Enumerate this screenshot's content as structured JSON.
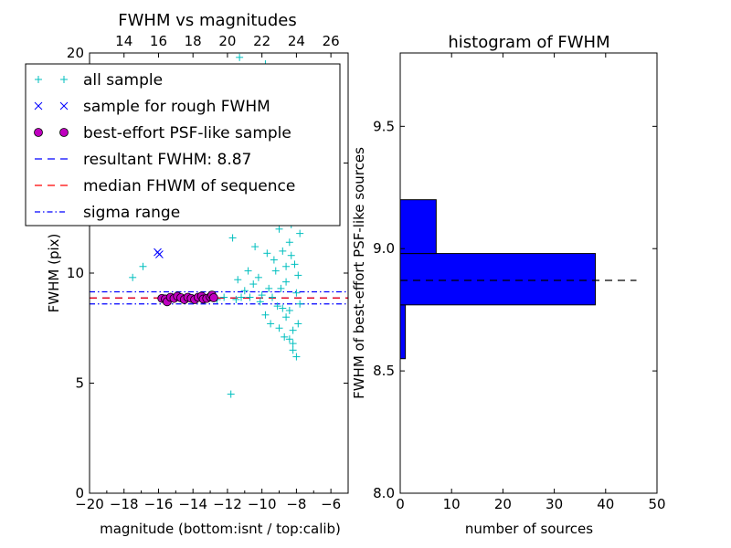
{
  "chart_data": [
    {
      "type": "scatter",
      "title": "FWHM vs magnitudes",
      "xlabel": "magnitude (bottom:isnt / top:calib)",
      "ylabel": "FWHM (pix)",
      "xlim": [
        -20,
        -5
      ],
      "ylim": [
        0,
        20
      ],
      "xticks": [
        -20,
        -18,
        -16,
        -14,
        -12,
        -10,
        -8,
        -6
      ],
      "xtick_labels": [
        "−20",
        "−18",
        "−16",
        "−14",
        "−12",
        "−10",
        "−8",
        "−6"
      ],
      "yticks": [
        0,
        5,
        10,
        15,
        20
      ],
      "ytick_labels": [
        "0",
        "5",
        "10",
        "15",
        "20"
      ],
      "top_axis": {
        "label": "calib",
        "xlim": [
          12,
          27
        ],
        "ticks": [
          14,
          16,
          18,
          20,
          22,
          24,
          26
        ],
        "tick_labels": [
          "14",
          "16",
          "18",
          "20",
          "22",
          "24",
          "26"
        ]
      },
      "legend": {
        "placement": "upper-left",
        "entries": [
          {
            "label": "all sample",
            "marker": "+",
            "color": "#00bfbf"
          },
          {
            "label": "sample for rough FWHM",
            "marker": "x",
            "color": "#0000ff"
          },
          {
            "label": "best-effort PSF-like sample",
            "marker": "o",
            "color": "#bf00bf"
          },
          {
            "label": "resultant FWHM: 8.87",
            "linestyle": "dashed",
            "color": "#0000ff"
          },
          {
            "label": "median FHWM of sequence",
            "linestyle": "dashed",
            "color": "#ff0000"
          },
          {
            "label": "sigma range",
            "linestyle": "dashdot",
            "color": "#0000ff"
          }
        ]
      },
      "series": [
        {
          "name": "all sample",
          "marker": "+",
          "color": "#00bfbf",
          "points": [
            [
              -17.5,
              9.8
            ],
            [
              -16.9,
              10.3
            ],
            [
              -11.8,
              4.5
            ],
            [
              -11.3,
              19.8
            ],
            [
              -11.1,
              12.4
            ],
            [
              -10.6,
              17.5
            ],
            [
              -10.4,
              11.2
            ],
            [
              -9.8,
              19.5
            ],
            [
              -9.6,
              15.3
            ],
            [
              -9.3,
              13.6
            ],
            [
              -11.7,
              11.6
            ],
            [
              -12.0,
              12.8
            ],
            [
              -11.4,
              9.7
            ],
            [
              -11.0,
              9.2
            ],
            [
              -10.8,
              10.1
            ],
            [
              -10.5,
              9.5
            ],
            [
              -10.2,
              9.8
            ],
            [
              -10.0,
              9.0
            ],
            [
              -9.8,
              8.1
            ],
            [
              -9.5,
              7.7
            ],
            [
              -9.3,
              10.6
            ],
            [
              -9.1,
              8.5
            ],
            [
              -9.0,
              12.0
            ],
            [
              -8.8,
              11.0
            ],
            [
              -8.7,
              7.1
            ],
            [
              -8.6,
              9.6
            ],
            [
              -8.5,
              13.5
            ],
            [
              -8.4,
              8.3
            ],
            [
              -8.3,
              10.8
            ],
            [
              -8.2,
              6.5
            ],
            [
              -8.1,
              12.6
            ],
            [
              -8.0,
              9.1
            ],
            [
              -7.9,
              7.7
            ],
            [
              -7.8,
              11.8
            ],
            [
              -8.8,
              14.5
            ],
            [
              -8.5,
              15.8
            ],
            [
              -8.0,
              6.2
            ],
            [
              -8.2,
              6.8
            ],
            [
              -9.2,
              10.1
            ],
            [
              -9.4,
              8.9
            ],
            [
              -8.9,
              9.3
            ],
            [
              -8.6,
              8.0
            ],
            [
              -8.3,
              12.2
            ],
            [
              -8.1,
              10.4
            ],
            [
              -7.9,
              9.9
            ],
            [
              -8.7,
              12.9
            ],
            [
              -8.4,
              11.4
            ],
            [
              -8.2,
              7.4
            ],
            [
              -9.6,
              9.3
            ],
            [
              -10.1,
              8.7
            ],
            [
              -10.7,
              8.9
            ],
            [
              -11.2,
              8.9
            ],
            [
              -11.5,
              8.8
            ],
            [
              -12.2,
              8.9
            ],
            [
              -12.6,
              8.8
            ],
            [
              -9.7,
              10.9
            ],
            [
              -9.0,
              7.5
            ],
            [
              -8.6,
              10.3
            ],
            [
              -8.4,
              7.0
            ],
            [
              -8.8,
              8.4
            ],
            [
              -7.7,
              12.4
            ],
            [
              -7.8,
              8.6
            ]
          ]
        },
        {
          "name": "sample for rough FWHM",
          "marker": "x",
          "color": "#0000ff",
          "points": [
            [
              -16.05,
              10.95
            ],
            [
              -15.95,
              10.85
            ]
          ]
        },
        {
          "name": "best-effort PSF-like sample",
          "marker": "o",
          "color": "#bf00bf",
          "points": [
            [
              -15.8,
              8.85
            ],
            [
              -15.6,
              8.82
            ],
            [
              -15.5,
              8.7
            ],
            [
              -15.3,
              8.9
            ],
            [
              -15.1,
              8.85
            ],
            [
              -14.9,
              8.95
            ],
            [
              -14.7,
              8.88
            ],
            [
              -14.5,
              8.8
            ],
            [
              -14.3,
              8.9
            ],
            [
              -14.1,
              8.85
            ],
            [
              -13.9,
              8.8
            ],
            [
              -13.7,
              8.9
            ],
            [
              -13.5,
              8.95
            ],
            [
              -13.4,
              8.82
            ],
            [
              -13.2,
              8.85
            ],
            [
              -13.0,
              8.92
            ],
            [
              -12.9,
              9.0
            ],
            [
              -12.8,
              8.88
            ]
          ]
        }
      ],
      "hlines": [
        {
          "name": "resultant FWHM",
          "y": 8.87,
          "color": "#0000ff",
          "linestyle": "dashed"
        },
        {
          "name": "median FHWM of sequence",
          "y": 8.87,
          "color": "#ff0000",
          "linestyle": "dashed"
        },
        {
          "name": "sigma upper",
          "y": 9.15,
          "color": "#0000ff",
          "linestyle": "dashdot"
        },
        {
          "name": "sigma lower",
          "y": 8.6,
          "color": "#0000ff",
          "linestyle": "dashdot"
        }
      ]
    },
    {
      "type": "bar",
      "orientation": "horizontal",
      "title": "histogram of FWHM",
      "xlabel": "number of sources",
      "ylabel": "FWHM of best-effort PSF-like sources",
      "xlim": [
        0,
        50
      ],
      "ylim": [
        8.0,
        9.8
      ],
      "xticks": [
        0,
        10,
        20,
        30,
        40,
        50
      ],
      "xtick_labels": [
        "0",
        "10",
        "20",
        "30",
        "40",
        "50"
      ],
      "yticks": [
        8.0,
        8.5,
        9.0,
        9.5
      ],
      "ytick_labels": [
        "8.0",
        "8.5",
        "9.0",
        "9.5"
      ],
      "bars": [
        {
          "y0": 8.55,
          "y1": 8.77,
          "count": 1
        },
        {
          "y0": 8.77,
          "y1": 8.98,
          "count": 38
        },
        {
          "y0": 8.98,
          "y1": 9.2,
          "count": 7
        }
      ],
      "bar_color": "#0000ff",
      "reference_line": {
        "y": 8.87,
        "x_end": 46,
        "linestyle": "dashed",
        "color": "#000000"
      }
    }
  ]
}
